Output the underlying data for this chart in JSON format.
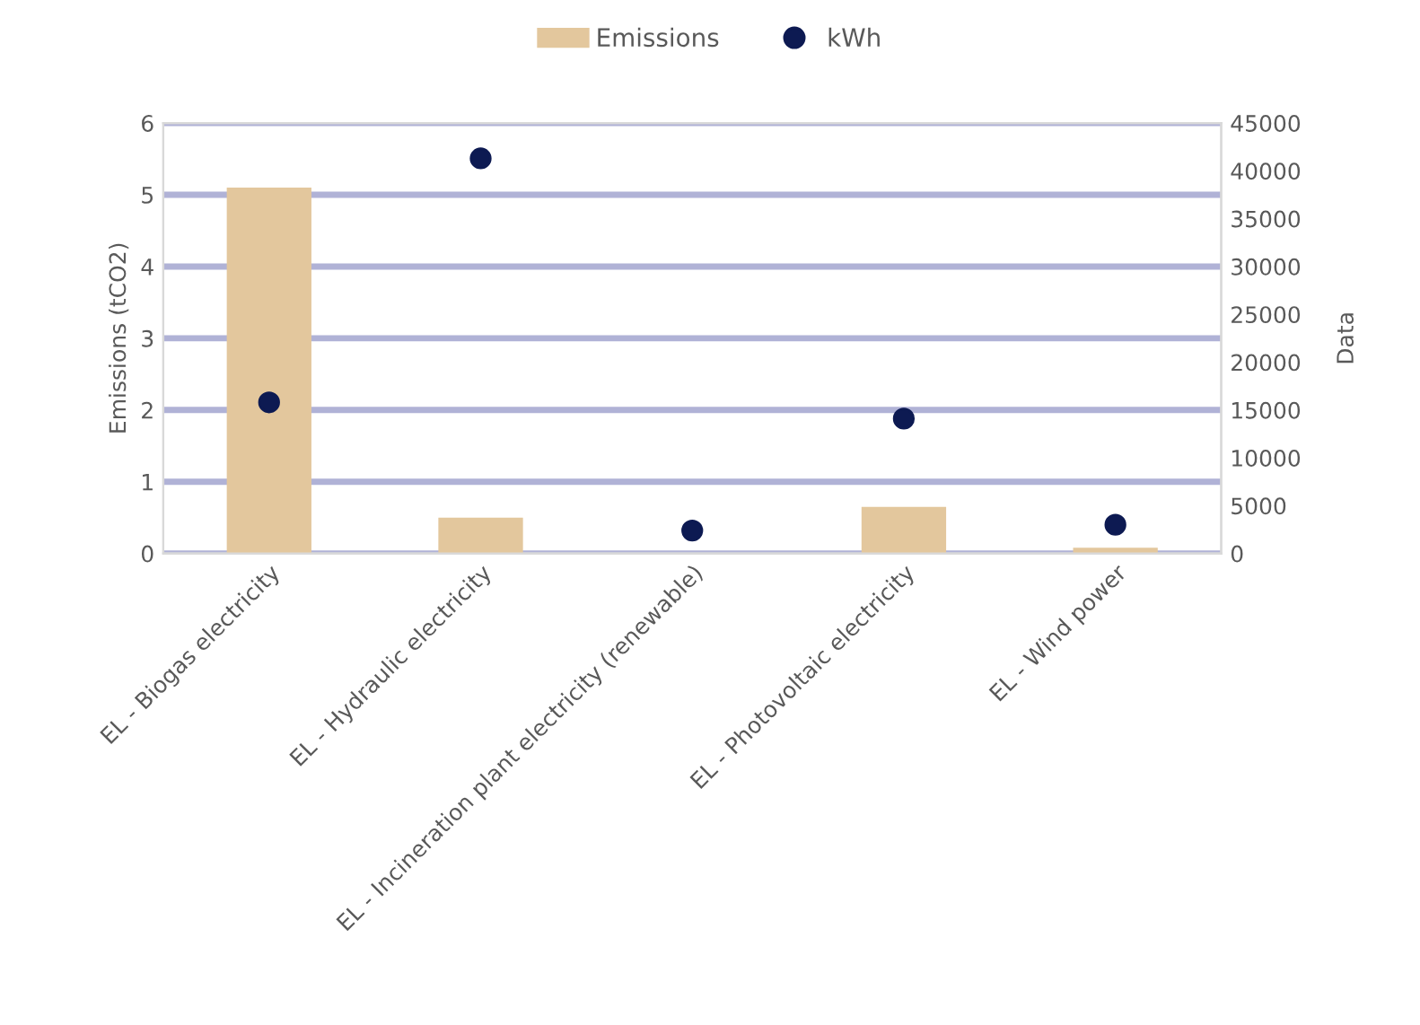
{
  "chart_data": {
    "type": "bar",
    "categories": [
      "EL - Biogas electricity",
      "EL - Hydraulic electricity",
      "EL - Incineration plant electricity (renewable)",
      "EL - Photovoltaic electricity",
      "EL - Wind power"
    ],
    "series": [
      {
        "name": "Emissions",
        "color": "#e3c79d",
        "values": [
          5.1,
          0.5,
          0,
          0.65,
          0.08
        ]
      },
      {
        "name": "kWh",
        "type": "scatter",
        "axis": "y2",
        "color": "#0d1a52",
        "marker": "circle",
        "values": [
          15800,
          41300,
          2400,
          14100,
          3000
        ]
      }
    ],
    "ylabel": "Emissions (tCO2)",
    "y2label": "Data",
    "ylim": [
      0,
      6
    ],
    "yticks": [
      0,
      1,
      2,
      3,
      4,
      5,
      6
    ],
    "y2lim": [
      0,
      45000
    ],
    "y2ticks": [
      0,
      5000,
      10000,
      15000,
      20000,
      25000,
      30000,
      35000,
      40000,
      45000
    ],
    "grid": "y",
    "legend": "top"
  }
}
